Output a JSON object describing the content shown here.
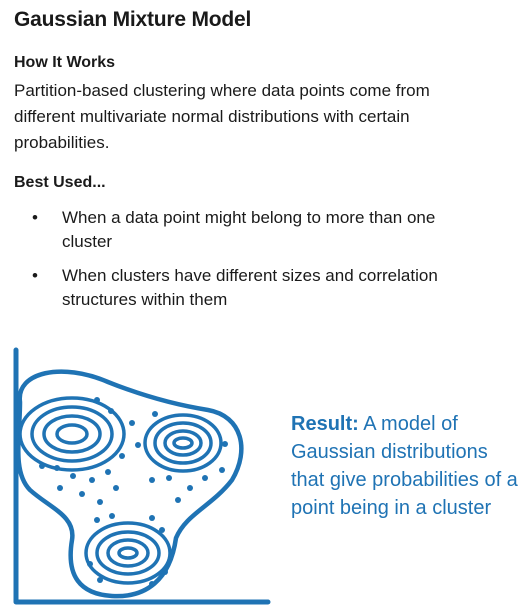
{
  "title": "Gaussian Mixture Model",
  "how_it_works": {
    "heading": "How It Works",
    "text": "Partition-based clustering where data points come from different multivariate normal distributions with certain probabilities."
  },
  "best_used": {
    "heading": "Best Used...",
    "items": [
      "When a data point might belong to more than one cluster",
      "When clusters have different sizes and correlation structures within them"
    ]
  },
  "result": {
    "label": "Result:",
    "text": "A model of Gaussian distributions that give probabilities of a point being in a cluster"
  },
  "colors": {
    "accent": "#1f73b4",
    "text": "#1a1a1a"
  },
  "icons": [
    "bullet-icon",
    "cluster-diagram-icon"
  ]
}
